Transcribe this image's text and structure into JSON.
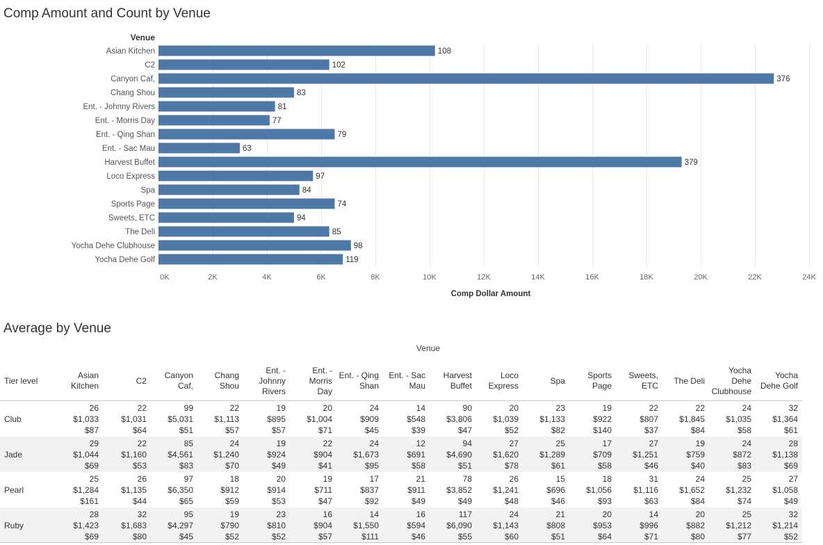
{
  "sheet1": {
    "title": "Comp Amount and Count by Venue"
  },
  "sheet2": {
    "title": "Average by Venue"
  },
  "chart_data": {
    "type": "bar",
    "orientation": "horizontal",
    "title": "Comp Amount and Count by Venue",
    "row_header": "Venue",
    "xlabel": "Comp Dollar Amount",
    "xlim": [
      0,
      24000
    ],
    "x_ticks": [
      "0K",
      "2K",
      "4K",
      "6K",
      "8K",
      "10K",
      "12K",
      "14K",
      "16K",
      "18K",
      "20K",
      "22K",
      "24K"
    ],
    "grid": true,
    "bar_color": "#4e79a7",
    "categories": [
      "Asian Kitchen",
      "C2",
      "Canyon Caf,",
      "Chang Shou",
      "Ent. - Johnny Rivers",
      "Ent. - Morris Day",
      "Ent. - Qing Shan",
      "Ent. - Sac Mau",
      "Harvest Buffet",
      "Loco Express",
      "Spa",
      "Sports Page",
      "Sweets, ETC",
      "The Deli",
      "Yocha Dehe Clubhouse",
      "Yocha Dehe Golf"
    ],
    "values": [
      10200,
      6300,
      22700,
      5000,
      4300,
      4100,
      6500,
      3000,
      19300,
      5700,
      5200,
      6500,
      5000,
      6300,
      7100,
      6800
    ],
    "labels": [
      "108",
      "102",
      "376",
      "83",
      "81",
      "77",
      "79",
      "63",
      "379",
      "97",
      "84",
      "74",
      "94",
      "85",
      "98",
      "119"
    ]
  },
  "table": {
    "column_group_header": "Venue",
    "row_header": "Tier level",
    "columns": [
      [
        "Asian",
        "Kitchen"
      ],
      [
        "C2"
      ],
      [
        "Canyon",
        "Caf,"
      ],
      [
        "Chang",
        "Shou"
      ],
      [
        "Ent. -",
        "Johnny",
        "Rivers"
      ],
      [
        "Ent. -",
        "Morris",
        "Day"
      ],
      [
        "Ent. - Qing",
        "Shan"
      ],
      [
        "Ent. - Sac",
        "Mau"
      ],
      [
        "Harvest",
        "Buffet"
      ],
      [
        "Loco",
        "Express"
      ],
      [
        "Spa"
      ],
      [
        "Sports",
        "Page"
      ],
      [
        "Sweets,",
        "ETC"
      ],
      [
        "The Deli"
      ],
      [
        "Yocha",
        "Dehe",
        "Clubhouse"
      ],
      [
        "Yocha",
        "Dehe Golf"
      ]
    ],
    "rows": [
      {
        "label": "Club",
        "cells": [
          [
            "26",
            "$1,033",
            "$87"
          ],
          [
            "22",
            "$1,031",
            "$64"
          ],
          [
            "99",
            "$5,031",
            "$51"
          ],
          [
            "22",
            "$1,113",
            "$57"
          ],
          [
            "19",
            "$895",
            "$57"
          ],
          [
            "20",
            "$1,004",
            "$71"
          ],
          [
            "24",
            "$909",
            "$45"
          ],
          [
            "14",
            "$548",
            "$39"
          ],
          [
            "90",
            "$3,806",
            "$47"
          ],
          [
            "20",
            "$1,039",
            "$52"
          ],
          [
            "23",
            "$1,133",
            "$82"
          ],
          [
            "19",
            "$922",
            "$140"
          ],
          [
            "22",
            "$807",
            "$37"
          ],
          [
            "22",
            "$1,845",
            "$84"
          ],
          [
            "24",
            "$1,035",
            "$58"
          ],
          [
            "32",
            "$1,364",
            "$61"
          ]
        ]
      },
      {
        "label": "Jade",
        "cells": [
          [
            "29",
            "$1,044",
            "$69"
          ],
          [
            "22",
            "$1,160",
            "$53"
          ],
          [
            "85",
            "$4,561",
            "$83"
          ],
          [
            "24",
            "$1,240",
            "$70"
          ],
          [
            "19",
            "$924",
            "$49"
          ],
          [
            "22",
            "$904",
            "$41"
          ],
          [
            "24",
            "$1,673",
            "$95"
          ],
          [
            "12",
            "$691",
            "$58"
          ],
          [
            "94",
            "$4,690",
            "$51"
          ],
          [
            "27",
            "$1,620",
            "$78"
          ],
          [
            "25",
            "$1,289",
            "$61"
          ],
          [
            "17",
            "$709",
            "$58"
          ],
          [
            "27",
            "$1,251",
            "$46"
          ],
          [
            "19",
            "$759",
            "$40"
          ],
          [
            "24",
            "$872",
            "$83"
          ],
          [
            "28",
            "$1,138",
            "$69"
          ]
        ]
      },
      {
        "label": "Pearl",
        "cells": [
          [
            "25",
            "$1,284",
            "$161"
          ],
          [
            "26",
            "$1,135",
            "$44"
          ],
          [
            "97",
            "$6,350",
            "$65"
          ],
          [
            "18",
            "$912",
            "$59"
          ],
          [
            "20",
            "$914",
            "$53"
          ],
          [
            "19",
            "$711",
            "$47"
          ],
          [
            "17",
            "$837",
            "$92"
          ],
          [
            "21",
            "$911",
            "$49"
          ],
          [
            "78",
            "$3,852",
            "$49"
          ],
          [
            "26",
            "$1,241",
            "$48"
          ],
          [
            "15",
            "$696",
            "$46"
          ],
          [
            "18",
            "$1,056",
            "$93"
          ],
          [
            "31",
            "$1,116",
            "$63"
          ],
          [
            "24",
            "$1,652",
            "$84"
          ],
          [
            "25",
            "$1,232",
            "$74"
          ],
          [
            "27",
            "$1,058",
            "$49"
          ]
        ]
      },
      {
        "label": "Ruby",
        "cells": [
          [
            "28",
            "$1,423",
            "$69"
          ],
          [
            "32",
            "$1,683",
            "$80"
          ],
          [
            "95",
            "$4,297",
            "$45"
          ],
          [
            "19",
            "$790",
            "$52"
          ],
          [
            "23",
            "$810",
            "$52"
          ],
          [
            "16",
            "$904",
            "$57"
          ],
          [
            "14",
            "$1,550",
            "$111"
          ],
          [
            "16",
            "$594",
            "$46"
          ],
          [
            "117",
            "$6,090",
            "$55"
          ],
          [
            "24",
            "$1,143",
            "$60"
          ],
          [
            "21",
            "$808",
            "$51"
          ],
          [
            "20",
            "$953",
            "$64"
          ],
          [
            "14",
            "$996",
            "$71"
          ],
          [
            "20",
            "$882",
            "$80"
          ],
          [
            "25",
            "$1,212",
            "$77"
          ],
          [
            "32",
            "$1,214",
            "$52"
          ]
        ]
      }
    ]
  }
}
